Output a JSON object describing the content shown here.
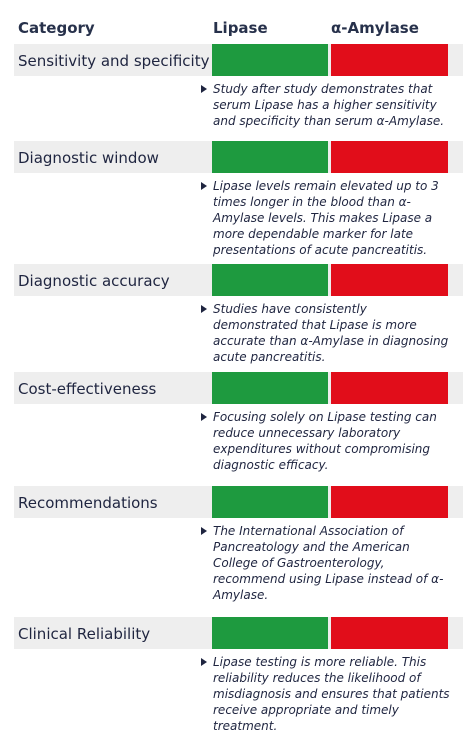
{
  "header": {
    "category": "Category",
    "lipase": "Lipase",
    "amylase": "α-Amylase"
  },
  "colors": {
    "lipase_bar": "#1e9a3f",
    "amylase_bar": "#e10d1a",
    "category_band": "#eeeeee",
    "text": "#1f2540"
  },
  "rows": [
    {
      "category": "Sensitivity and specificity",
      "note": "Study after study demonstrates that serum Lipase has a higher sensitivity and specificity than serum α-Amylase."
    },
    {
      "category": "Diagnostic window",
      "note": "Lipase levels remain elevated up to 3 times longer in the blood than α-Amylase levels. This makes Lipase a more dependable marker for late presentations of acute pancreatitis."
    },
    {
      "category": "Diagnostic accuracy",
      "note": "Studies have consistently demonstrated that Lipase is more accurate than α-Amylase in diagnosing acute pancreatitis."
    },
    {
      "category": "Cost-effectiveness",
      "note": "Focusing solely on Lipase testing can reduce unnecessary laboratory expenditures without compromising diagnostic efficacy."
    },
    {
      "category": "Recommendations",
      "note": "The International Association of Pancreatology and the American College of Gastroenterology, recommend using Lipase instead of α-Amylase."
    },
    {
      "category": "Clinical Reliability",
      "note": "Lipase testing is more reliable. This reliability reduces the likelihood of misdiagnosis and ensures that patients receive appropriate and timely treatment."
    }
  ]
}
